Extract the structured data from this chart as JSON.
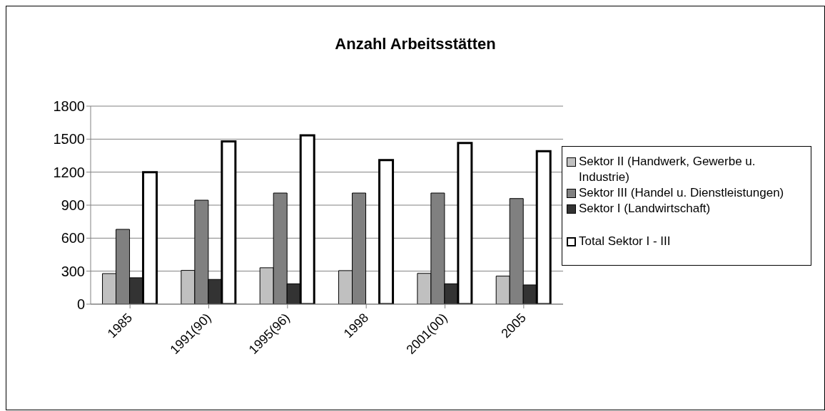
{
  "chart_data": {
    "type": "bar",
    "title": "Anzahl Arbeitsstätten",
    "categories": [
      "1985",
      "1991(90)",
      "1995(96)",
      "1998",
      "2001(00)",
      "2005"
    ],
    "series": [
      {
        "name": "Sektor II (Handwerk, Gewerbe u. Industrie)",
        "color": "#c0c0c0",
        "values": [
          278,
          307,
          331,
          305,
          280,
          255
        ]
      },
      {
        "name": "Sektor III (Handel u. Dienstleistungen)",
        "color": "#808080",
        "values": [
          680,
          945,
          1010,
          1010,
          1010,
          960
        ]
      },
      {
        "name": "Sektor I (Landwirtschaft)",
        "color": "#333333",
        "values": [
          240,
          225,
          185,
          null,
          185,
          175
        ]
      },
      {
        "name": "Total Sektor I - III",
        "color": "#ffffff",
        "values": [
          1200,
          1480,
          1535,
          1310,
          1465,
          1390
        ]
      }
    ],
    "ylim": [
      0,
      1800
    ],
    "yticks": [
      0,
      300,
      600,
      900,
      1200,
      1500,
      1800
    ],
    "grid": "y",
    "legend": "right"
  }
}
